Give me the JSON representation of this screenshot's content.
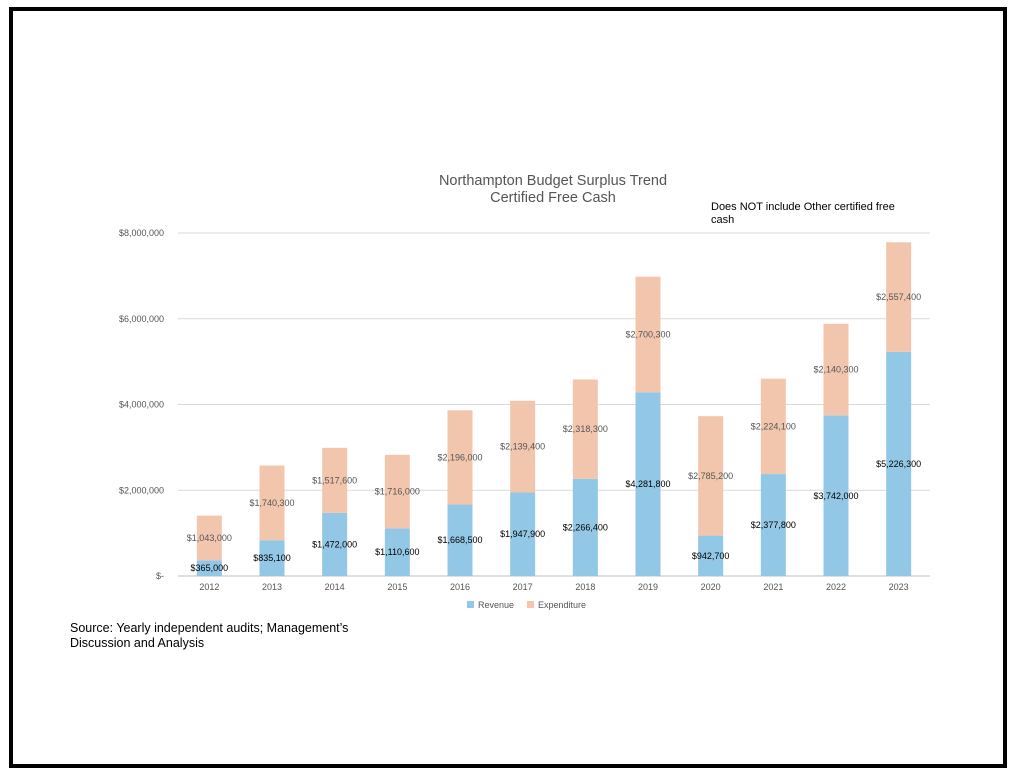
{
  "chart_data": {
    "type": "bar",
    "stacked": true,
    "title": "Northampton Budget Surplus Trend",
    "subtitle": "Certified Free Cash",
    "annotation": "Does NOT include Other certified free cash",
    "categories": [
      "2012",
      "2013",
      "2014",
      "2015",
      "2016",
      "2017",
      "2018",
      "2019",
      "2020",
      "2021",
      "2022",
      "2023"
    ],
    "series": [
      {
        "name": "Revenue",
        "color": "#93c7e6",
        "values": [
          365000,
          835100,
          1472000,
          1110600,
          1668500,
          1947900,
          2266400,
          4281800,
          942700,
          2377800,
          3742000,
          5226300
        ],
        "labels": [
          "$365,000",
          "$835,100",
          "$1,472,000",
          "$1,110,600",
          "$1,668,500",
          "$1,947,900",
          "$2,266,400",
          "$4,281,800",
          "$942,700",
          "$2,377,800",
          "$3,742,000",
          "$5,226,300"
        ]
      },
      {
        "name": "Expenditure",
        "color": "#f2c6ad",
        "values": [
          1043000,
          1740300,
          1517600,
          1716000,
          2196000,
          2139400,
          2318300,
          2700300,
          2785200,
          2224100,
          2140300,
          2557400
        ],
        "labels": [
          "$1,043,000",
          "$1,740,300",
          "$1,517,600",
          "$1,716,000",
          "$2,196,000",
          "$2,139,400",
          "$2,318,300",
          "$2,700,300",
          "$2,785,200",
          "$2,224,100",
          "$2,140,300",
          "$2,557,400"
        ]
      }
    ],
    "ylim": [
      0,
      8000000
    ],
    "yticks": [
      0,
      2000000,
      4000000,
      6000000,
      8000000
    ],
    "ytick_labels": [
      "$-",
      "$2,000,000",
      "$4,000,000",
      "$6,000,000",
      "$8,000,000"
    ],
    "grid": true,
    "legend_position": "bottom-center"
  },
  "source_note": "Source: Yearly independent audits; Management’s Discussion and Analysis"
}
